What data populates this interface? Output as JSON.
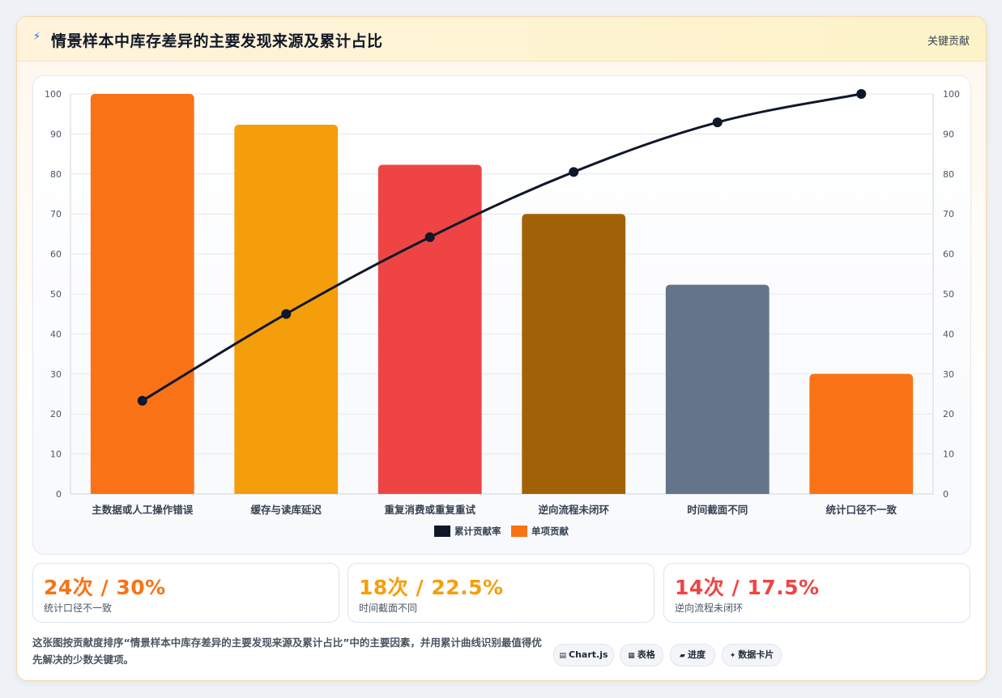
{
  "header": {
    "title": "情景样本中库存差异的主要发现来源及累计占比",
    "tag": "关键贡献",
    "icon": "lightning-icon"
  },
  "chart_data": {
    "type": "bar",
    "categories": [
      "主数据或人工操作错误",
      "缓存与读库延迟",
      "重复消费或重复重试",
      "逆向流程未闭环",
      "时间截面不同",
      "统计口径不一致"
    ],
    "values": [
      100,
      92.3,
      82.3,
      70,
      52.3,
      30
    ],
    "bar_colors": [
      "#f97316",
      "#f59e0b",
      "#ef4444",
      "#a16207",
      "#64748b",
      "#f97316"
    ],
    "line": {
      "name": "累计贡献率",
      "values": [
        23.3,
        45,
        64.2,
        80.5,
        92.9,
        100
      ],
      "color": "#0f172a"
    },
    "bar_series_name": "单项贡献",
    "ylim": [
      0,
      100
    ],
    "y_ticks": [
      0,
      10,
      20,
      30,
      40,
      50,
      60,
      70,
      80,
      90,
      100
    ],
    "y2lim": [
      0,
      100
    ],
    "legend": "bottom",
    "grid": true
  },
  "stats": [
    {
      "value": "24次 / 30%",
      "label": "统计口径不一致",
      "color": "#f97316"
    },
    {
      "value": "18次 / 22.5%",
      "label": "时间截面不同",
      "color": "#f59e0b"
    },
    {
      "value": "14次 / 17.5%",
      "label": "逆向流程未闭环",
      "color": "#ef4444"
    }
  ],
  "note": "这张图按贡献度排序“情景样本中库存差异的主要发现来源及累计占比”中的主要因素，并用累计曲线识别最值得优先解决的少数关键项。",
  "pills": [
    {
      "label": "Chart.js",
      "icon": "▤",
      "icon_name": "chart-icon"
    },
    {
      "label": "表格",
      "icon": "▦",
      "icon_name": "table-icon"
    },
    {
      "label": "进度",
      "icon": "▰",
      "icon_name": "progress-icon"
    },
    {
      "label": "数据卡片",
      "icon": "✦",
      "icon_name": "sparkle-icon"
    }
  ]
}
